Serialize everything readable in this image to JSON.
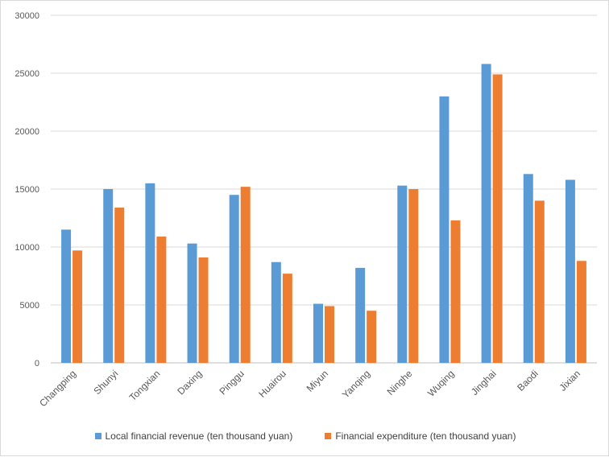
{
  "chart_data": {
    "type": "bar",
    "title": "",
    "xlabel": "",
    "ylabel": "",
    "categories": [
      "Changping",
      "Shunyi",
      "Tongxian",
      "Daxing",
      "Pinggu",
      "Huairou",
      "Miyun",
      "Yanqing",
      "Ninghe",
      "Wuqing",
      "Jinghai",
      "Baodi",
      "Jixian"
    ],
    "series": [
      {
        "name": "Local financial revenue (ten thousand yuan)",
        "color": "#5b9bd5",
        "values": [
          11500,
          15000,
          15500,
          10300,
          14500,
          8700,
          5100,
          8200,
          15300,
          23000,
          25800,
          16300,
          15800
        ]
      },
      {
        "name": "Financial expenditure (ten thousand yuan)",
        "color": "#ed7d31",
        "values": [
          9700,
          13400,
          10900,
          9100,
          15200,
          7700,
          4900,
          4500,
          15000,
          12300,
          24900,
          14000,
          8800
        ]
      }
    ],
    "ylim": [
      0,
      30000
    ],
    "yticks": [
      "0",
      "5000",
      "10000",
      "15000",
      "20000",
      "25000",
      "30000"
    ],
    "grid": true,
    "legend_position": "bottom"
  },
  "colors": {
    "grid": "#d9d9d9",
    "axis": "#bfbfbf"
  }
}
